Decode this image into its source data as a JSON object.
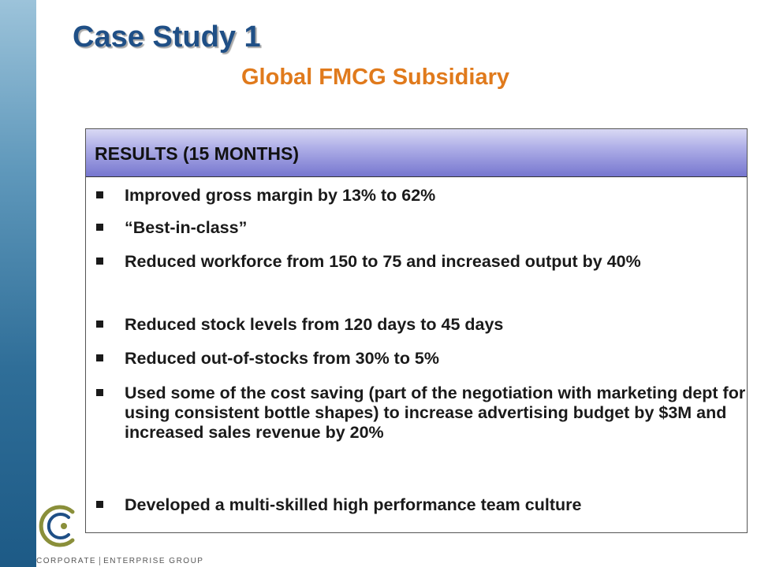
{
  "slide": {
    "title": "Case Study 1",
    "subtitle": "Global FMCG Subsidiary"
  },
  "panel": {
    "header": "RESULTS (15 MONTHS)",
    "bullets": [
      "Improved gross margin by 13% to 62%",
      "“Best-in-class”",
      "Reduced workforce from 150 to 75 and increased output by 40%",
      "Reduced stock levels from 120 days to 45 days",
      "Reduced out-of-stocks from 30% to 5%",
      "Used some of the cost saving (part of the negotiation with marketing dept for using consistent bottle shapes) to increase advertising budget by $3M and increased sales revenue by 20%",
      "Developed a multi-skilled high performance team culture"
    ]
  },
  "footer": {
    "brand_left": "CORPORATE",
    "brand_right": "ENTERPRISE GROUP"
  },
  "colors": {
    "title": "#1f4f86",
    "subtitle": "#e07a1c",
    "sidebar": "#2f6e98",
    "header_band": "#7676cf"
  }
}
